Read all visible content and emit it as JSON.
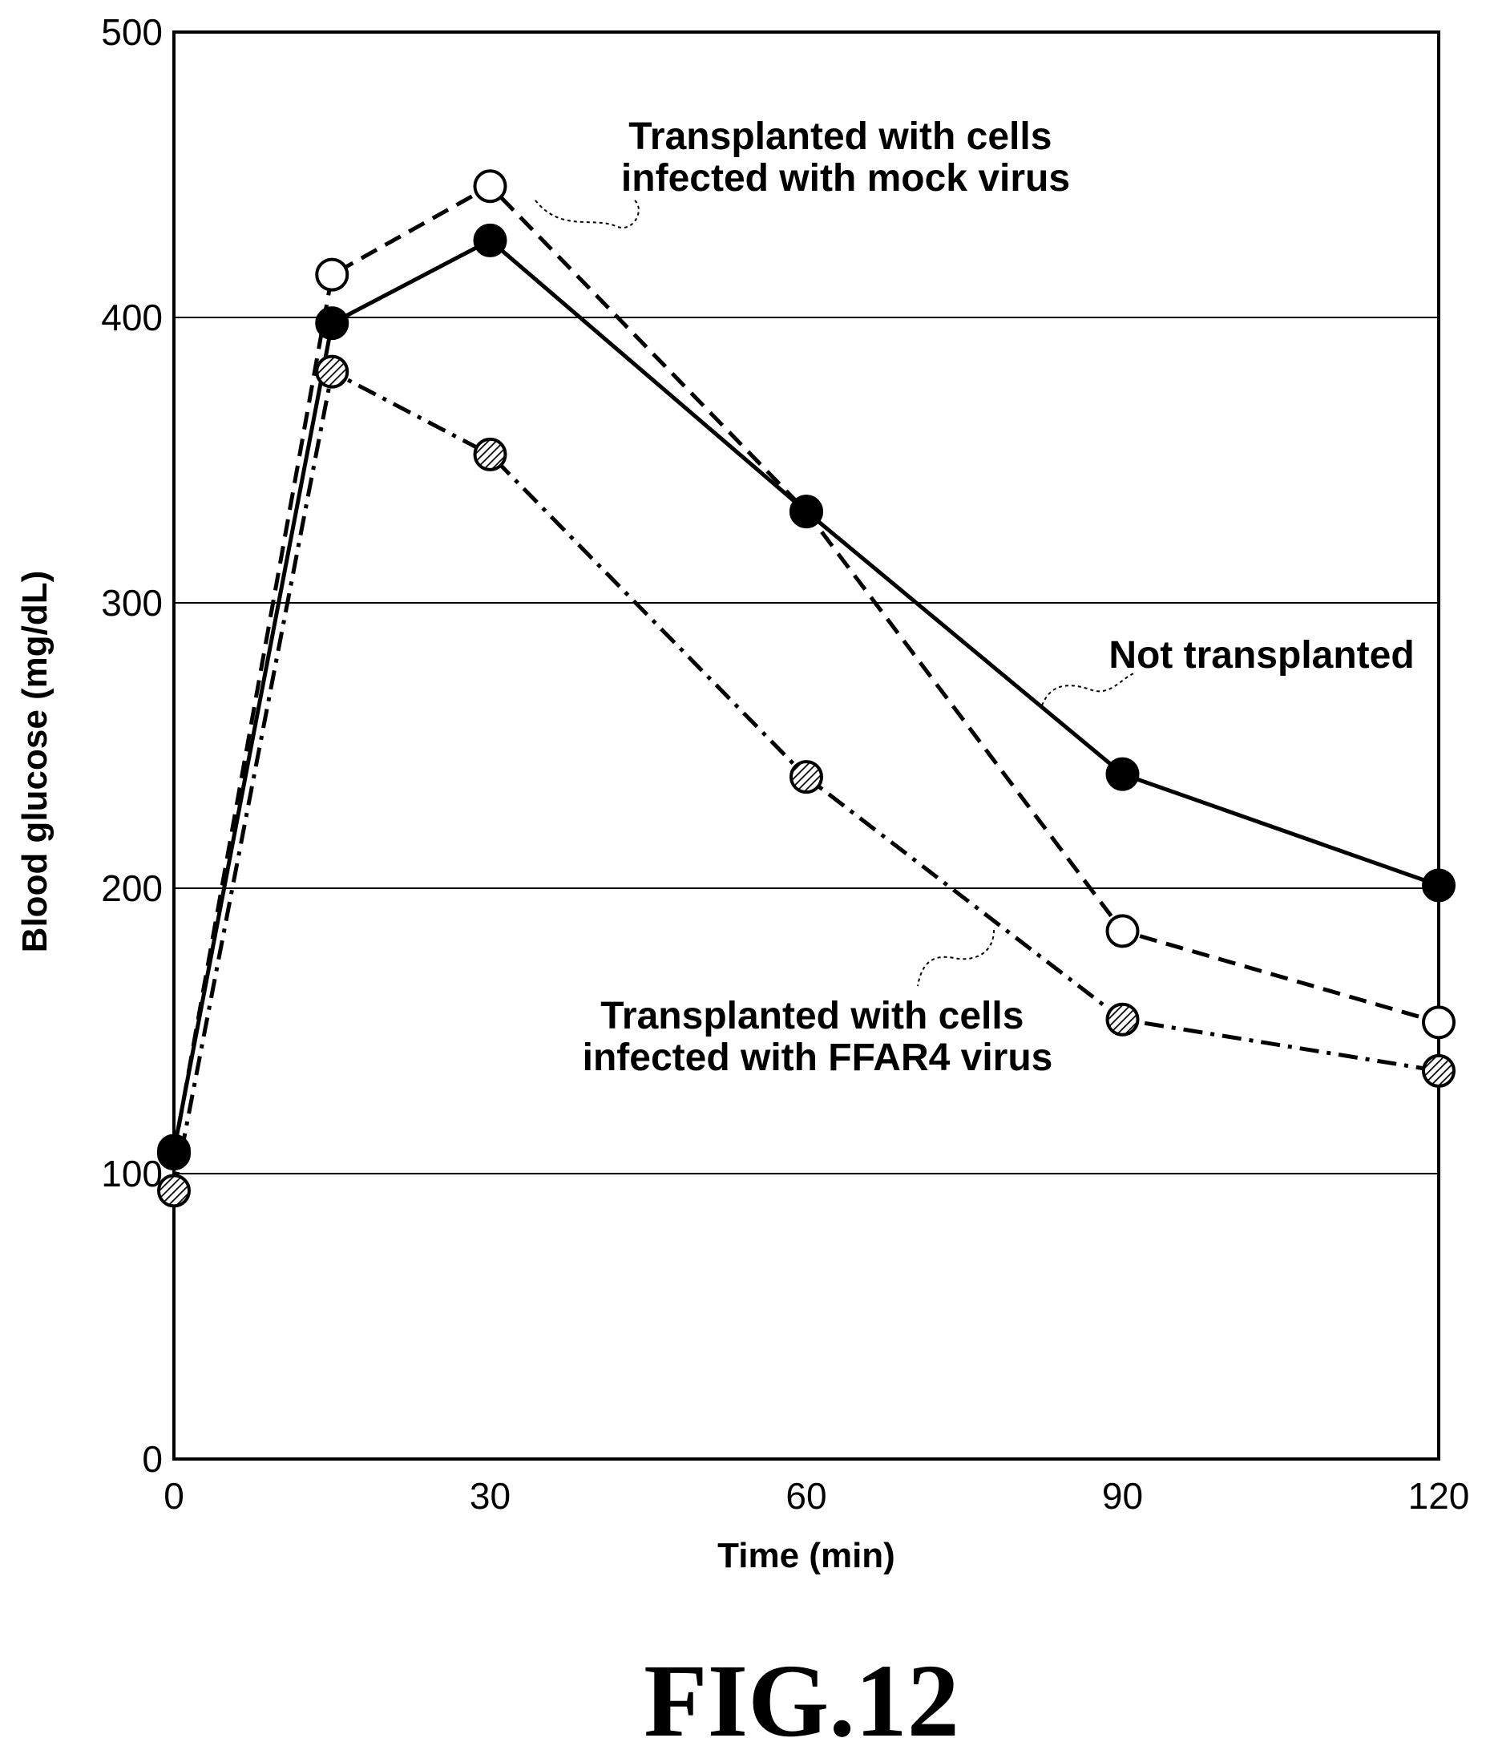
{
  "figure_label": "FIG.12",
  "chart_data": {
    "type": "line",
    "xlabel": "Time (min)",
    "ylabel": "Blood glucose (mg/dL)",
    "xlim": [
      0,
      120
    ],
    "ylim": [
      0,
      500
    ],
    "xticks": [
      0,
      30,
      60,
      90,
      120
    ],
    "yticks": [
      0,
      100,
      200,
      300,
      400,
      500
    ],
    "grid": "horizontal at 100, 200, 300, 400",
    "x": [
      0,
      15,
      30,
      60,
      90,
      120
    ],
    "series": [
      {
        "label_lines": [
          "Not transplanted"
        ],
        "marker": "filled",
        "line_style": "solid",
        "values": [
          108,
          398,
          427,
          332,
          240,
          201
        ]
      },
      {
        "label_lines": [
          "Transplanted with cells",
          "infected with mock virus"
        ],
        "marker": "open",
        "line_style": "dashed",
        "values": [
          107,
          415,
          446,
          332,
          185,
          153
        ]
      },
      {
        "label_lines": [
          "Transplanted with cells",
          "infected with FFAR4 virus"
        ],
        "marker": "hatched",
        "line_style": "dash-dot",
        "values": [
          94,
          381,
          352,
          239,
          154,
          136
        ]
      }
    ]
  }
}
